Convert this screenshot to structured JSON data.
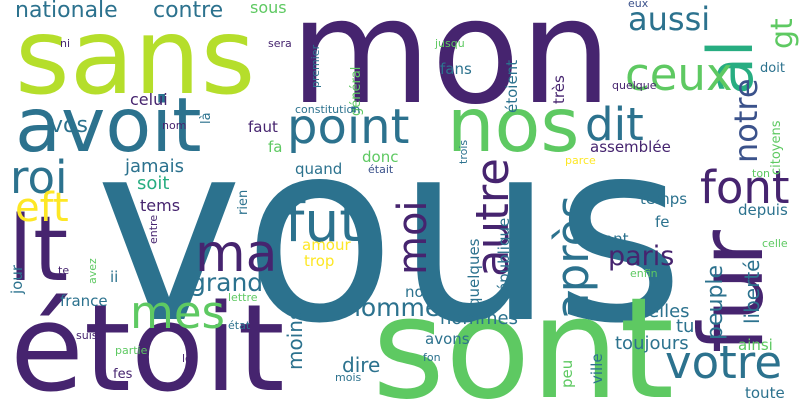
{
  "palette": {
    "dark_purple": "#46246f",
    "indigo": "#3b528b",
    "blue": "#31688e",
    "teal": "#2c728e",
    "green_teal": "#21908d",
    "sea_green": "#27ad81",
    "green": "#5ec962",
    "lime": "#b5de2b",
    "yellow": "#fde725"
  },
  "words": [
    "vous",
    "mon",
    "sont",
    "étoit",
    "sans",
    "avoit",
    "nos",
    "lt",
    "fur",
    "al",
    "point",
    "fut",
    "moi",
    "autre",
    "après",
    "ma",
    "ceux",
    "dit",
    "font",
    "notre",
    "roi",
    "eft",
    "mes",
    "votre",
    "aussi",
    "gt",
    "nationale",
    "contre",
    "sous",
    "vos",
    "homme",
    "grand",
    "paris",
    "peuple",
    "liberté",
    "hommes",
    "moins",
    "dire",
    "donc",
    "faut",
    "celui",
    "jamais",
    "soit",
    "tems",
    "quand",
    "amour",
    "trop",
    "quelques",
    "république",
    "tant",
    "temps",
    "depuis",
    "france",
    "elles",
    "tu",
    "toujours",
    "ainsi",
    "toute",
    "ville",
    "peu",
    "avons",
    "non",
    "fans",
    "étoient",
    "très",
    "général",
    "premier",
    "constitution",
    "citoyens",
    "assemblée",
    "doit",
    "eux",
    "jusqu",
    "ni",
    "sera",
    "là",
    "fa",
    "nom",
    "rien",
    "entre",
    "trois",
    "était",
    "parce",
    "ton",
    "fe",
    "celle",
    "enfin",
    "lettre",
    "te",
    "avez",
    "jour",
    "ii",
    "suis",
    "état",
    "partie",
    "loi",
    "fon",
    "fes",
    "mois",
    "quelque"
  ]
}
